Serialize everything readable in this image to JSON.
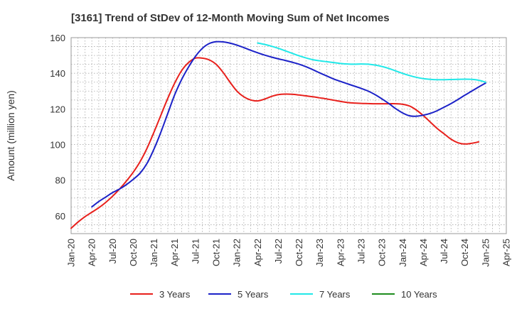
{
  "chart_data": {
    "type": "line",
    "title": "[3161]  Trend of StDev of 12-Month Moving Sum of Net Incomes",
    "xlabel": "",
    "ylabel": "Amount (million yen)",
    "ylim": [
      50,
      160
    ],
    "yticks": [
      60,
      80,
      100,
      120,
      140,
      160
    ],
    "x_ticks": [
      "Jan-20",
      "Apr-20",
      "Jul-20",
      "Oct-20",
      "Jan-21",
      "Apr-21",
      "Jul-21",
      "Oct-21",
      "Jan-22",
      "Apr-22",
      "Jul-22",
      "Oct-22",
      "Jan-23",
      "Apr-23",
      "Jul-23",
      "Oct-23",
      "Jan-24",
      "Apr-24",
      "Jul-24",
      "Oct-24",
      "Jan-25",
      "Apr-25"
    ],
    "grid": true,
    "legend_position": "bottom",
    "series": [
      {
        "name": "3 Years",
        "color": "#e8201c",
        "x": [
          "2020-01",
          "2020-02",
          "2020-03",
          "2020-04",
          "2020-05",
          "2020-06",
          "2020-07",
          "2020-08",
          "2020-09",
          "2020-10",
          "2020-11",
          "2020-12",
          "2021-01",
          "2021-02",
          "2021-03",
          "2021-04",
          "2021-05",
          "2021-06",
          "2021-07",
          "2021-08",
          "2021-09",
          "2021-10",
          "2021-11",
          "2021-12",
          "2022-01",
          "2022-02",
          "2022-03",
          "2022-04",
          "2022-05",
          "2022-06",
          "2022-07",
          "2022-08",
          "2022-09",
          "2022-10",
          "2022-11",
          "2022-12",
          "2023-01",
          "2023-02",
          "2023-03",
          "2023-04",
          "2023-05",
          "2023-06",
          "2023-07",
          "2023-08",
          "2023-09",
          "2023-10",
          "2023-11",
          "2023-12",
          "2024-01",
          "2024-02",
          "2024-03",
          "2024-04",
          "2024-05",
          "2024-06",
          "2024-07",
          "2024-08",
          "2024-09",
          "2024-10",
          "2024-11",
          "2024-12",
          "2025-01"
        ],
        "values": [
          53,
          56.5,
          59.5,
          62,
          64.5,
          67.5,
          71,
          75,
          79.5,
          84.5,
          90.5,
          98,
          107,
          116.5,
          126,
          134.5,
          141.5,
          146,
          148.5,
          148.5,
          147.5,
          145,
          140.5,
          135,
          130,
          126.8,
          125,
          124.5,
          125.5,
          127,
          128,
          128.3,
          128.2,
          127.8,
          127.3,
          126.8,
          126.2,
          125.6,
          124.9,
          124.2,
          123.6,
          123.3,
          123.1,
          123.0,
          122.9,
          122.9,
          122.9,
          122.9,
          122.6,
          121.6,
          119.3,
          116.2,
          112.6,
          109,
          106,
          103,
          101,
          100.3,
          100.7,
          101.5,
          null
        ]
      },
      {
        "name": "5 Years",
        "color": "#1c22c8",
        "x": [
          "2020-04",
          "2020-05",
          "2020-06",
          "2020-07",
          "2020-08",
          "2020-09",
          "2020-10",
          "2020-11",
          "2020-12",
          "2021-01",
          "2021-02",
          "2021-03",
          "2021-04",
          "2021-05",
          "2021-06",
          "2021-07",
          "2021-08",
          "2021-09",
          "2021-10",
          "2021-11",
          "2021-12",
          "2022-01",
          "2022-02",
          "2022-03",
          "2022-04",
          "2022-05",
          "2022-06",
          "2022-07",
          "2022-08",
          "2022-09",
          "2022-10",
          "2022-11",
          "2022-12",
          "2023-01",
          "2023-02",
          "2023-03",
          "2023-04",
          "2023-05",
          "2023-06",
          "2023-07",
          "2023-08",
          "2023-09",
          "2023-10",
          "2023-11",
          "2023-12",
          "2024-01",
          "2024-02",
          "2024-03",
          "2024-04",
          "2024-05",
          "2024-06",
          "2024-07",
          "2024-08",
          "2024-09",
          "2024-10",
          "2024-11",
          "2024-12",
          "2025-01"
        ],
        "values": [
          65,
          68,
          70.5,
          73,
          75,
          77.5,
          80.5,
          84,
          89.5,
          97.5,
          107,
          117.5,
          128,
          136.5,
          143.5,
          149.5,
          154,
          156.7,
          157.7,
          157.6,
          156.9,
          155.8,
          154.4,
          152.9,
          151.5,
          150.2,
          149.1,
          148.1,
          147.2,
          146.2,
          145.1,
          143.7,
          142,
          140.2,
          138.5,
          136.8,
          135.4,
          134.1,
          132.8,
          131.5,
          130,
          128,
          125.6,
          123,
          120.1,
          117.7,
          116.1,
          115.9,
          116.5,
          117.5,
          119,
          121,
          123,
          125.3,
          127.7,
          130,
          132.3,
          134.5
        ]
      },
      {
        "name": "7 Years",
        "color": "#21e8e8",
        "x": [
          "2022-04",
          "2022-05",
          "2022-06",
          "2022-07",
          "2022-08",
          "2022-09",
          "2022-10",
          "2022-11",
          "2022-12",
          "2023-01",
          "2023-02",
          "2023-03",
          "2023-04",
          "2023-05",
          "2023-06",
          "2023-07",
          "2023-08",
          "2023-09",
          "2023-10",
          "2023-11",
          "2023-12",
          "2024-01",
          "2024-02",
          "2024-03",
          "2024-04",
          "2024-05",
          "2024-06",
          "2024-07",
          "2024-08",
          "2024-09",
          "2024-10",
          "2024-11",
          "2024-12",
          "2025-01"
        ],
        "values": [
          157,
          156.2,
          155.2,
          154,
          152.6,
          151.2,
          149.8,
          148.6,
          147.6,
          147,
          146.5,
          146,
          145.5,
          145.2,
          145.1,
          145.2,
          145.1,
          144.6,
          143.8,
          142.7,
          141.3,
          139.9,
          138.7,
          137.7,
          137,
          136.6,
          136.4,
          136.4,
          136.5,
          136.6,
          136.7,
          136.6,
          136.1,
          135
        ]
      },
      {
        "name": "10 Years",
        "color": "#1e8c1e",
        "x": [],
        "values": []
      }
    ]
  }
}
